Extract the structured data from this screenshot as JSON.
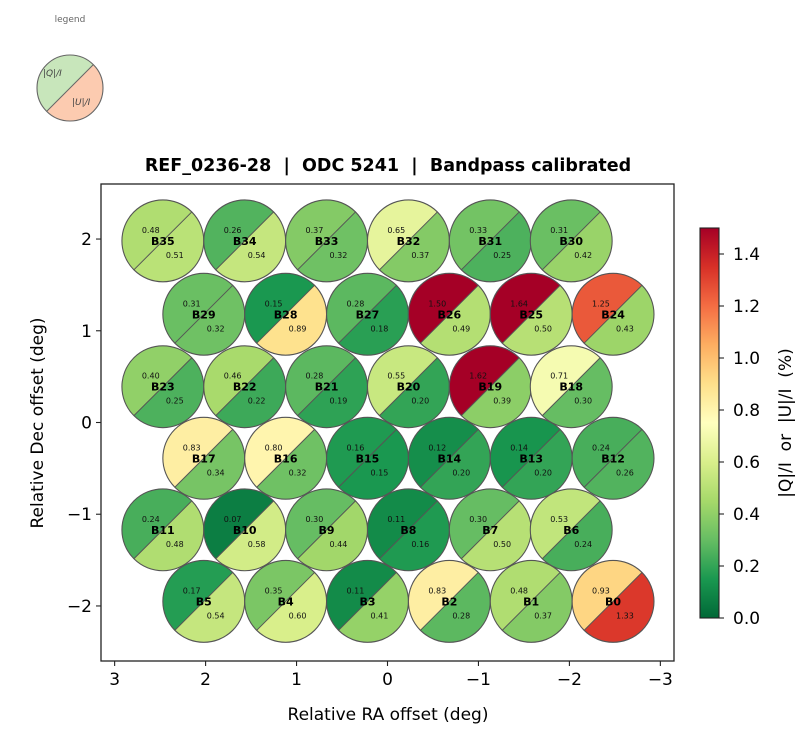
{
  "chart_data": {
    "type": "scatter",
    "subtype": "split-circle beam map",
    "title": "REF_0236-28  |  ODC 5241  |  Bandpass calibrated",
    "xlabel": "Relative RA offset (deg)",
    "ylabel": "Relative Dec offset (deg)",
    "xlim": [
      3.15,
      -3.15
    ],
    "ylim": [
      -2.6,
      2.6
    ],
    "x_inverted": true,
    "xticks": [
      3,
      2,
      1,
      0,
      -1,
      -2,
      -3
    ],
    "xtick_labels": [
      "3",
      "2",
      "1",
      "0",
      "−1",
      "−2",
      "−3"
    ],
    "yticks": [
      2,
      1,
      0,
      -1,
      -2
    ],
    "ytick_labels": [
      "2",
      "1",
      "0",
      "−1",
      "−2"
    ],
    "grid": false,
    "beam_radius_deg": 0.45,
    "colorbar": {
      "label": "|Q|/I  or  |U|/I  (%)",
      "colormap": "RdYlGn_r",
      "vmin": 0.0,
      "vmax": 1.5,
      "ticks": [
        0.0,
        0.2,
        0.4,
        0.6,
        0.8,
        1.0,
        1.2,
        1.4
      ],
      "tick_labels": [
        "0.0",
        "0.2",
        "0.4",
        "0.6",
        "0.8",
        "1.0",
        "1.2",
        "1.4"
      ]
    },
    "legend": {
      "title": "legend",
      "position": "top-left",
      "upper_label": "|Q|/I",
      "lower_label": "|U|/I",
      "upper_color": "#c8e6bb",
      "lower_color": "#fccbb0"
    },
    "beams": [
      {
        "name": "B35",
        "ra": 2.47,
        "dec": 1.98,
        "q": 0.48,
        "u": 0.51
      },
      {
        "name": "B34",
        "ra": 1.57,
        "dec": 1.98,
        "q": 0.26,
        "u": 0.54
      },
      {
        "name": "B33",
        "ra": 0.67,
        "dec": 1.98,
        "q": 0.37,
        "u": 0.32
      },
      {
        "name": "B32",
        "ra": -0.23,
        "dec": 1.98,
        "q": 0.65,
        "u": 0.37
      },
      {
        "name": "B31",
        "ra": -1.13,
        "dec": 1.98,
        "q": 0.33,
        "u": 0.25
      },
      {
        "name": "B30",
        "ra": -2.02,
        "dec": 1.98,
        "q": 0.31,
        "u": 0.42
      },
      {
        "name": "B29",
        "ra": 2.02,
        "dec": 1.18,
        "q": 0.31,
        "u": 0.32
      },
      {
        "name": "B28",
        "ra": 1.12,
        "dec": 1.18,
        "q": 0.15,
        "u": 0.89
      },
      {
        "name": "B27",
        "ra": 0.22,
        "dec": 1.18,
        "q": 0.28,
        "u": 0.18
      },
      {
        "name": "B26",
        "ra": -0.68,
        "dec": 1.18,
        "q": 1.5,
        "u": 0.49
      },
      {
        "name": "B25",
        "ra": -1.58,
        "dec": 1.18,
        "q": 1.64,
        "u": 0.5
      },
      {
        "name": "B24",
        "ra": -2.48,
        "dec": 1.18,
        "q": 1.25,
        "u": 0.43
      },
      {
        "name": "B23",
        "ra": 2.47,
        "dec": 0.39,
        "q": 0.4,
        "u": 0.25
      },
      {
        "name": "B22",
        "ra": 1.57,
        "dec": 0.39,
        "q": 0.46,
        "u": 0.22
      },
      {
        "name": "B21",
        "ra": 0.67,
        "dec": 0.39,
        "q": 0.28,
        "u": 0.19
      },
      {
        "name": "B20",
        "ra": -0.23,
        "dec": 0.39,
        "q": 0.55,
        "u": 0.2
      },
      {
        "name": "B19",
        "ra": -1.13,
        "dec": 0.39,
        "q": 1.62,
        "u": 0.39
      },
      {
        "name": "B18",
        "ra": -2.02,
        "dec": 0.39,
        "q": 0.71,
        "u": 0.3
      },
      {
        "name": "B17",
        "ra": 2.02,
        "dec": -0.39,
        "q": 0.83,
        "u": 0.34
      },
      {
        "name": "B16",
        "ra": 1.12,
        "dec": -0.39,
        "q": 0.8,
        "u": 0.32
      },
      {
        "name": "B15",
        "ra": 0.22,
        "dec": -0.39,
        "q": 0.16,
        "u": 0.15
      },
      {
        "name": "B14",
        "ra": -0.68,
        "dec": -0.39,
        "q": 0.12,
        "u": 0.2
      },
      {
        "name": "B13",
        "ra": -1.58,
        "dec": -0.39,
        "q": 0.14,
        "u": 0.2
      },
      {
        "name": "B12",
        "ra": -2.48,
        "dec": -0.39,
        "q": 0.24,
        "u": 0.26
      },
      {
        "name": "B11",
        "ra": 2.47,
        "dec": -1.17,
        "q": 0.24,
        "u": 0.48
      },
      {
        "name": "B10",
        "ra": 1.57,
        "dec": -1.17,
        "q": 0.07,
        "u": 0.58
      },
      {
        "name": "B9",
        "ra": 0.67,
        "dec": -1.17,
        "q": 0.3,
        "u": 0.44
      },
      {
        "name": "B8",
        "ra": -0.23,
        "dec": -1.17,
        "q": 0.11,
        "u": 0.16
      },
      {
        "name": "B7",
        "ra": -1.13,
        "dec": -1.17,
        "q": 0.3,
        "u": 0.5
      },
      {
        "name": "B6",
        "ra": -2.02,
        "dec": -1.17,
        "q": 0.53,
        "u": 0.24
      },
      {
        "name": "B5",
        "ra": 2.02,
        "dec": -1.95,
        "q": 0.17,
        "u": 0.54
      },
      {
        "name": "B4",
        "ra": 1.12,
        "dec": -1.95,
        "q": 0.35,
        "u": 0.6
      },
      {
        "name": "B3",
        "ra": 0.22,
        "dec": -1.95,
        "q": 0.11,
        "u": 0.41
      },
      {
        "name": "B2",
        "ra": -0.68,
        "dec": -1.95,
        "q": 0.83,
        "u": 0.28
      },
      {
        "name": "B1",
        "ra": -1.58,
        "dec": -1.95,
        "q": 0.48,
        "u": 0.37
      },
      {
        "name": "B0",
        "ra": -2.48,
        "dec": -1.95,
        "q": 0.93,
        "u": 1.33
      }
    ]
  }
}
